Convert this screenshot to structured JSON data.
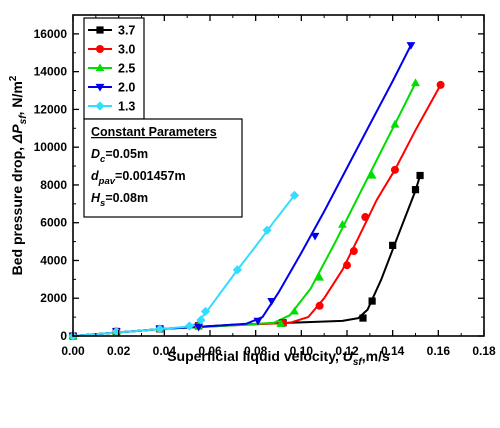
{
  "chart_data": {
    "type": "line",
    "xlabel": {
      "main": "Superficial liquid velocity, ",
      "var": "U",
      "sub": "sf",
      "tail": ",m/s"
    },
    "ylabel": {
      "main": "Bed pressure drop, ",
      "var": "ΔP",
      "sub": "sf",
      "tail": ", N/m",
      "sup": "2"
    },
    "xlim": [
      0.0,
      0.18
    ],
    "ylim": [
      0,
      17000
    ],
    "xticks": [
      0.0,
      0.02,
      0.04,
      0.06,
      0.08,
      0.1,
      0.12,
      0.14,
      0.16,
      0.18
    ],
    "xtick_labels": [
      "0.00",
      "0.02",
      "0.04",
      "0.06",
      "0.08",
      "0.10",
      "0.12",
      "0.14",
      "0.16",
      "0.18"
    ],
    "yticks": [
      0,
      2000,
      4000,
      6000,
      8000,
      10000,
      12000,
      14000,
      16000
    ],
    "ytick_labels": [
      "0",
      "2000",
      "4000",
      "6000",
      "8000",
      "10000",
      "12000",
      "14000",
      "16000"
    ],
    "legend_position": "top-left",
    "series": [
      {
        "name": "3.7",
        "color": "#000000",
        "marker": "square",
        "points": [
          [
            0.0,
            0
          ],
          [
            0.019,
            240
          ],
          [
            0.038,
            380
          ],
          [
            0.055,
            540
          ],
          [
            0.092,
            700
          ],
          [
            0.127,
            950
          ],
          [
            0.131,
            1850
          ],
          [
            0.14,
            4800
          ],
          [
            0.15,
            7750
          ],
          [
            0.152,
            8500
          ]
        ],
        "curve": [
          [
            0.0,
            0
          ],
          [
            0.04,
            380
          ],
          [
            0.07,
            600
          ],
          [
            0.1,
            720
          ],
          [
            0.118,
            800
          ],
          [
            0.125,
            950
          ],
          [
            0.129,
            1400
          ],
          [
            0.135,
            3000
          ],
          [
            0.142,
            5200
          ],
          [
            0.15,
            7700
          ],
          [
            0.152,
            8500
          ]
        ]
      },
      {
        "name": "3.0",
        "color": "#ff0000",
        "marker": "circle",
        "points": [
          [
            0.0,
            0
          ],
          [
            0.019,
            240
          ],
          [
            0.038,
            380
          ],
          [
            0.055,
            540
          ],
          [
            0.092,
            680
          ],
          [
            0.108,
            1600
          ],
          [
            0.12,
            3750
          ],
          [
            0.123,
            4500
          ],
          [
            0.128,
            6300
          ],
          [
            0.141,
            8800
          ],
          [
            0.161,
            13300
          ]
        ],
        "curve": [
          [
            0.0,
            0
          ],
          [
            0.04,
            380
          ],
          [
            0.07,
            560
          ],
          [
            0.095,
            700
          ],
          [
            0.103,
            1000
          ],
          [
            0.11,
            2000
          ],
          [
            0.118,
            3500
          ],
          [
            0.125,
            5200
          ],
          [
            0.133,
            7200
          ],
          [
            0.141,
            8800
          ],
          [
            0.15,
            10900
          ],
          [
            0.161,
            13300
          ]
        ]
      },
      {
        "name": "2.5",
        "color": "#00dd00",
        "marker": "triangle-up",
        "points": [
          [
            0.0,
            0
          ],
          [
            0.019,
            240
          ],
          [
            0.038,
            380
          ],
          [
            0.055,
            540
          ],
          [
            0.091,
            650
          ],
          [
            0.097,
            1300
          ],
          [
            0.108,
            3100
          ],
          [
            0.118,
            5900
          ],
          [
            0.131,
            8500
          ],
          [
            0.141,
            11200
          ],
          [
            0.15,
            13400
          ]
        ],
        "curve": [
          [
            0.0,
            0
          ],
          [
            0.04,
            380
          ],
          [
            0.07,
            560
          ],
          [
            0.088,
            700
          ],
          [
            0.095,
            1100
          ],
          [
            0.104,
            2500
          ],
          [
            0.115,
            5000
          ],
          [
            0.125,
            7400
          ],
          [
            0.135,
            9800
          ],
          [
            0.143,
            11700
          ],
          [
            0.15,
            13400
          ]
        ]
      },
      {
        "name": "2.0",
        "color": "#0000ee",
        "marker": "triangle-down",
        "points": [
          [
            0.0,
            0
          ],
          [
            0.019,
            240
          ],
          [
            0.038,
            380
          ],
          [
            0.055,
            480
          ],
          [
            0.081,
            800
          ],
          [
            0.087,
            1850
          ],
          [
            0.106,
            5300
          ],
          [
            0.148,
            15400
          ]
        ],
        "curve": [
          [
            0.0,
            0
          ],
          [
            0.04,
            380
          ],
          [
            0.06,
            520
          ],
          [
            0.076,
            650
          ],
          [
            0.083,
            1000
          ],
          [
            0.09,
            2300
          ],
          [
            0.1,
            4400
          ],
          [
            0.11,
            6600
          ],
          [
            0.12,
            8900
          ],
          [
            0.13,
            11200
          ],
          [
            0.14,
            13500
          ],
          [
            0.148,
            15400
          ]
        ]
      },
      {
        "name": "1.3",
        "color": "#33ddff",
        "marker": "diamond",
        "points": [
          [
            0.0,
            0
          ],
          [
            0.019,
            240
          ],
          [
            0.038,
            380
          ],
          [
            0.051,
            530
          ],
          [
            0.056,
            850
          ],
          [
            0.058,
            1300
          ],
          [
            0.072,
            3500
          ],
          [
            0.085,
            5600
          ],
          [
            0.097,
            7450
          ]
        ],
        "curve": [
          [
            0.0,
            0
          ],
          [
            0.04,
            380
          ],
          [
            0.05,
            500
          ],
          [
            0.054,
            650
          ],
          [
            0.058,
            1200
          ],
          [
            0.065,
            2350
          ],
          [
            0.072,
            3500
          ],
          [
            0.08,
            4750
          ],
          [
            0.088,
            6050
          ],
          [
            0.097,
            7450
          ]
        ]
      }
    ],
    "annotation": {
      "title": "Constant Parameters",
      "lines": [
        {
          "var": "D",
          "sub": "c",
          "value": "=0.05m"
        },
        {
          "var": "d",
          "sub": "pav",
          "value": "=0.001457m"
        },
        {
          "var": "H",
          "sub": "s",
          "value": "=0.08m"
        }
      ]
    }
  }
}
